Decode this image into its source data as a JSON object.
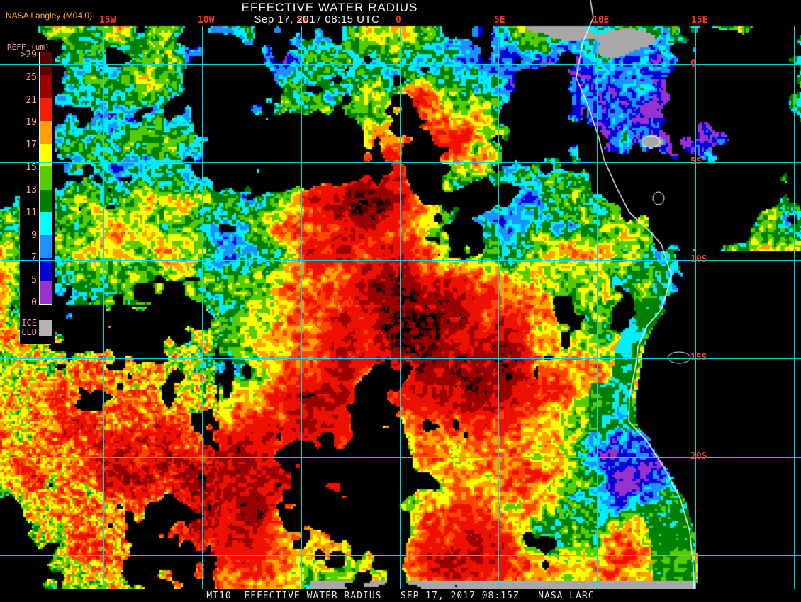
{
  "header": {
    "credit": "NASA Langley (M04.0)",
    "title": "EFFECTIVE WATER RADIUS",
    "subtitle": "Sep 17, 2017 08:15 UTC"
  },
  "footer": {
    "text": "MT10  EFFECTIVE WATER RADIUS   SEP 17, 2017 08:15Z   NASA LARC"
  },
  "legend": {
    "title": "REFF (um)",
    "units": "um",
    "ticks": [
      ">29",
      "25",
      "21",
      "19",
      "17",
      "15",
      "13",
      "11",
      "9",
      "7",
      "5",
      "0"
    ],
    "segment_colors": [
      "#5c0000",
      "#9b0000",
      "#f02000",
      "#ffa000",
      "#ffff00",
      "#55cc00",
      "#008000",
      "#00ffff",
      "#1e90ff",
      "#0000d8",
      "#9932cc"
    ],
    "ice_labels": [
      "ICE",
      "CLD"
    ],
    "ice_color": "#b4b4b4"
  },
  "grid": {
    "line_color": "#00dde8",
    "label_color": "#ff3626",
    "meridians": [
      [
        "15W",
        146
      ],
      [
        "10W",
        285
      ],
      [
        "5W",
        425
      ],
      [
        "0",
        564
      ],
      [
        "5E",
        703
      ],
      [
        "10E",
        842
      ],
      [
        "15E",
        981
      ],
      [
        "",
        1120
      ]
    ],
    "parallels": [
      [
        "0",
        91
      ],
      [
        "5S",
        229
      ],
      [
        "10S",
        367
      ],
      [
        "15S",
        506
      ],
      [
        "20S",
        645
      ],
      [
        "",
        784
      ]
    ]
  },
  "map": {
    "palette": {
      "lt5": "#9932cc",
      "5to7": "#0000d8",
      "7to9": "#1e90ff",
      "9to11": "#00eeff",
      "11to13": "#008000",
      "13to15": "#55cc00",
      "15to17": "#ffff00",
      "17to19": "#ffa000",
      "19to21": "#ff4500",
      "21to25": "#ee1000",
      "25to29": "#990000",
      "gt29": "#5a0000",
      "ice_cld": "#a8a8a8",
      "no_retrieval": "#000000",
      "coastline": "#ffffff"
    }
  }
}
